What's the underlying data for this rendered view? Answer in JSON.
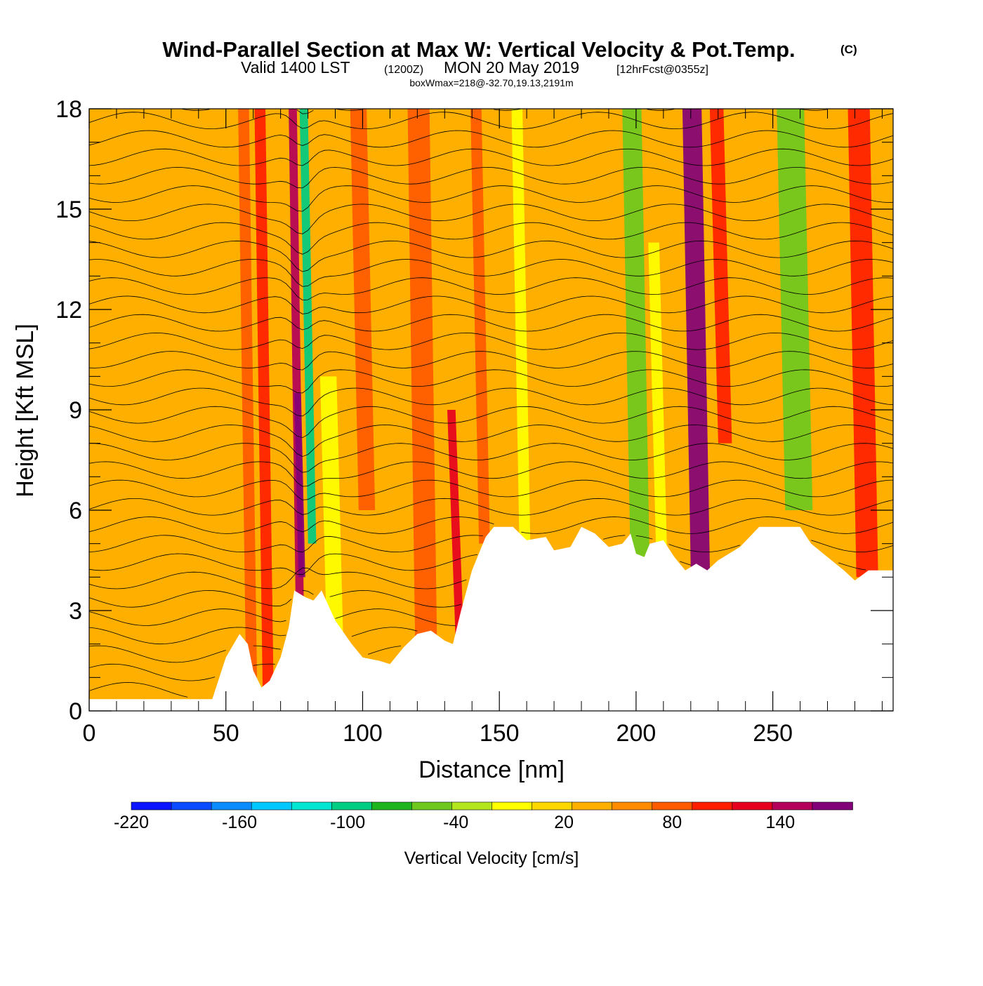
{
  "chart_data": {
    "type": "heatmap",
    "title_main": "Wind-Parallel Section at Max W: Vertical Velocity & Pot.Temp.",
    "title_mark": "(C)",
    "subtitle_a": "Valid 1400 LST",
    "subtitle_b": "(1200Z)",
    "subtitle_c": "MON 20 May 2019",
    "subtitle_d": "[12hrFcst@0355z]",
    "subtitle_2": "boxWmax=218@-32.70,19.13,2191m",
    "xlabel": "Distance [nm]",
    "ylabel": "Height [Kft MSL]",
    "xlim": [
      0,
      294
    ],
    "ylim": [
      0,
      18
    ],
    "xticks": [
      0,
      50,
      100,
      150,
      200,
      250
    ],
    "yticks": [
      0,
      3,
      6,
      9,
      12,
      15,
      18
    ],
    "colorbar": {
      "label": "Vertical Velocity [cm/s]",
      "min": -220,
      "max": 180,
      "step": 20,
      "tick_values": [
        -220,
        -160,
        -100,
        -40,
        20,
        80,
        140
      ],
      "tick_labels": [
        "-220",
        "-160",
        "-100",
        "-40",
        "20",
        "80",
        "140"
      ],
      "colors": [
        "#0a14ff",
        "#0a4bff",
        "#0a8cff",
        "#00c8ff",
        "#00e6d2",
        "#00cc82",
        "#1eb41e",
        "#6ec81e",
        "#b4e61e",
        "#ffff00",
        "#ffd700",
        "#ffaf00",
        "#ff8c00",
        "#ff5a00",
        "#ff1e00",
        "#e6001e",
        "#b4005a",
        "#820078"
      ]
    },
    "terrain_kft": [
      [
        0,
        0.35
      ],
      [
        45,
        0.35
      ],
      [
        50,
        1.6
      ],
      [
        55,
        2.3
      ],
      [
        58,
        2.0
      ],
      [
        60,
        1.2
      ],
      [
        63,
        0.7
      ],
      [
        66,
        0.9
      ],
      [
        70,
        1.6
      ],
      [
        73,
        2.5
      ],
      [
        75,
        3.6
      ],
      [
        79,
        3.4
      ],
      [
        82,
        3.3
      ],
      [
        85,
        3.6
      ],
      [
        90,
        2.7
      ],
      [
        96,
        2.0
      ],
      [
        100,
        1.6
      ],
      [
        106,
        1.5
      ],
      [
        110,
        1.4
      ],
      [
        115,
        1.9
      ],
      [
        120,
        2.3
      ],
      [
        125,
        2.4
      ],
      [
        130,
        2.1
      ],
      [
        133,
        2.0
      ],
      [
        136,
        3.0
      ],
      [
        140,
        4.2
      ],
      [
        145,
        5.2
      ],
      [
        148,
        5.5
      ],
      [
        155,
        5.5
      ],
      [
        160,
        5.1
      ],
      [
        167,
        5.2
      ],
      [
        170,
        4.8
      ],
      [
        176,
        4.9
      ],
      [
        180,
        5.5
      ],
      [
        185,
        5.3
      ],
      [
        190,
        4.9
      ],
      [
        195,
        5.0
      ],
      [
        198,
        5.3
      ],
      [
        200,
        4.7
      ],
      [
        203,
        4.6
      ],
      [
        205,
        5.0
      ],
      [
        210,
        5.1
      ],
      [
        214,
        4.6
      ],
      [
        218,
        4.2
      ],
      [
        222,
        4.4
      ],
      [
        226,
        4.2
      ],
      [
        230,
        4.5
      ],
      [
        238,
        4.9
      ],
      [
        245,
        5.5
      ],
      [
        260,
        5.5
      ],
      [
        264,
        5.0
      ],
      [
        270,
        4.6
      ],
      [
        276,
        4.2
      ],
      [
        280,
        3.9
      ],
      [
        285,
        4.2
      ],
      [
        294,
        4.2
      ]
    ],
    "vertical_velocity_features": [
      {
        "x": 32,
        "y0": 0,
        "y1": 18,
        "width_nm": 12,
        "w_cm_s": 15
      },
      {
        "x": 58,
        "y0": 0,
        "y1": 18,
        "width_nm": 4,
        "w_cm_s": 40
      },
      {
        "x": 64,
        "y0": 0,
        "y1": 18,
        "width_nm": 4,
        "w_cm_s": 65
      },
      {
        "x": 76,
        "y0": 0,
        "y1": 18,
        "width_nm": 3,
        "w_cm_s": 105
      },
      {
        "x": 77,
        "y0": 4,
        "y1": 9.5,
        "width_nm": 2.5,
        "w_cm_s": 160
      },
      {
        "x": 80,
        "y0": 5,
        "y1": 18,
        "width_nm": 3,
        "w_cm_s": -120
      },
      {
        "x": 89,
        "y0": 0,
        "y1": 10,
        "width_nm": 6,
        "w_cm_s": -40
      },
      {
        "x": 100,
        "y0": 6,
        "y1": 18,
        "width_nm": 6,
        "w_cm_s": 45
      },
      {
        "x": 122,
        "y0": 0,
        "y1": 18,
        "width_nm": 8,
        "w_cm_s": 40
      },
      {
        "x": 134,
        "y0": 2,
        "y1": 9,
        "width_nm": 3,
        "w_cm_s": 85
      },
      {
        "x": 143,
        "y0": 5,
        "y1": 18,
        "width_nm": 4,
        "w_cm_s": 55
      },
      {
        "x": 158,
        "y0": 4,
        "y1": 18,
        "width_nm": 4,
        "w_cm_s": -25
      },
      {
        "x": 200,
        "y0": 4,
        "y1": 18,
        "width_nm": 7,
        "w_cm_s": -80
      },
      {
        "x": 208,
        "y0": 4,
        "y1": 14,
        "width_nm": 4,
        "w_cm_s": -40
      },
      {
        "x": 222,
        "y0": 4,
        "y1": 18,
        "width_nm": 7,
        "w_cm_s": 120
      },
      {
        "x": 231,
        "y0": 8,
        "y1": 18,
        "width_nm": 5,
        "w_cm_s": 75
      },
      {
        "x": 258,
        "y0": 6,
        "y1": 18,
        "width_nm": 10,
        "w_cm_s": -80
      },
      {
        "x": 283,
        "y0": 4,
        "y1": 18,
        "width_nm": 8,
        "w_cm_s": 60
      }
    ],
    "potential_temperature_contours": {
      "interval_k": 2,
      "min_k": 302,
      "max_k": 366,
      "label_format": "2-digit"
    }
  }
}
